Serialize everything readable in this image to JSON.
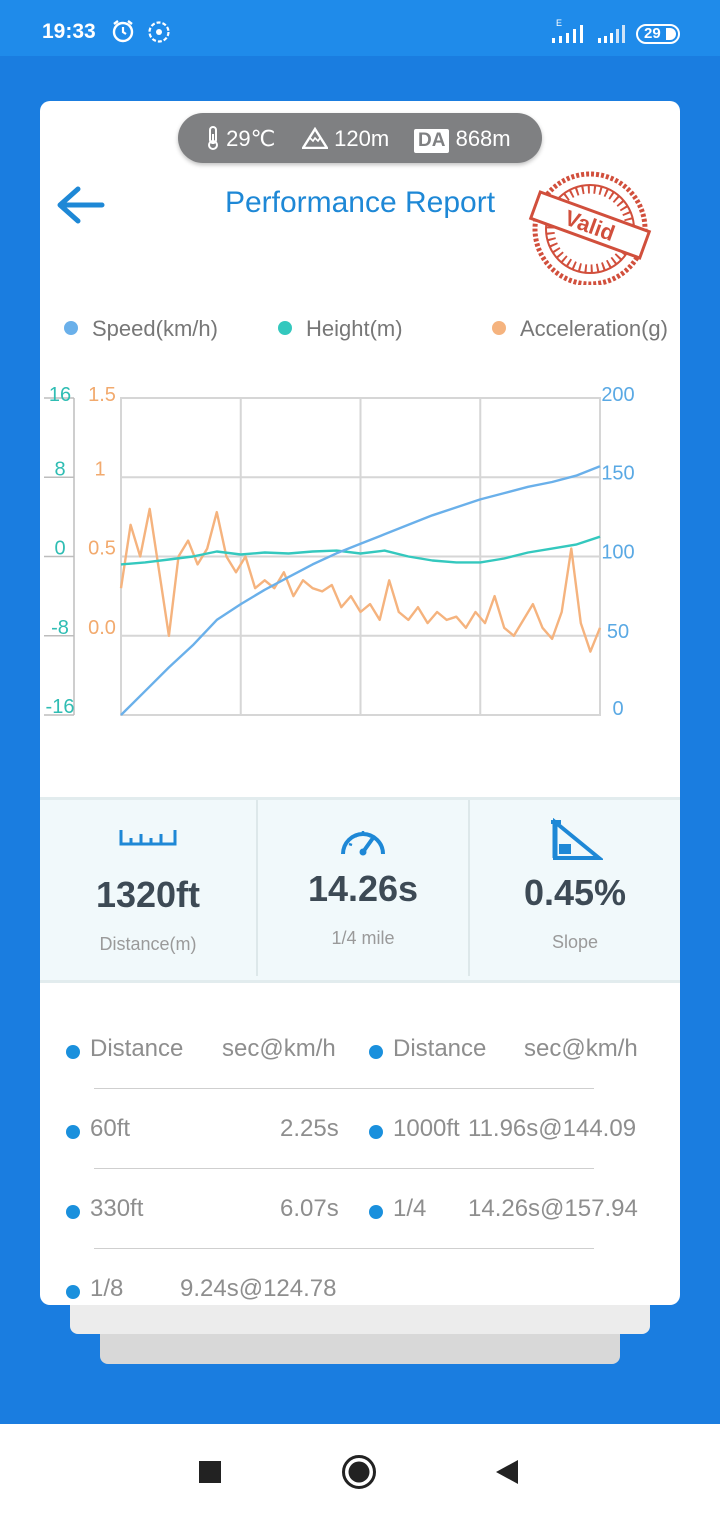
{
  "status_bar": {
    "time": "19:33",
    "battery": "29",
    "network_label": "E"
  },
  "env": {
    "temperature": "29℃",
    "altitude": "120m",
    "da_label": "DA",
    "density_altitude": "868m"
  },
  "header": {
    "title": "Performance Report",
    "badge": "Valid"
  },
  "chart_data": {
    "type": "line",
    "legend": [
      "Speed(km/h)",
      "Height(m)",
      "Acceleration(g)"
    ],
    "colors": {
      "speed": "#6ab0ea",
      "height": "#34c8be",
      "acceleration": "#f5b37e"
    },
    "axes": {
      "height_ticks": [
        "16",
        "8",
        "0",
        "-8",
        "-16"
      ],
      "accel_ticks": [
        "1.5",
        "1",
        "0.5",
        "0.0"
      ],
      "speed_ticks": [
        "200",
        "150",
        "100",
        "50",
        "0"
      ]
    },
    "ylim_speed": [
      0,
      200
    ],
    "ylim_height": [
      -16,
      16
    ],
    "ylim_acceleration": [
      -0.5,
      1.5
    ],
    "x_range": [
      0,
      1
    ],
    "grid": true,
    "series": [
      {
        "name": "Speed(km/h)",
        "axis": "speed",
        "x": [
          0,
          0.05,
          0.1,
          0.15,
          0.2,
          0.25,
          0.3,
          0.35,
          0.4,
          0.45,
          0.5,
          0.55,
          0.6,
          0.65,
          0.7,
          0.75,
          0.8,
          0.85,
          0.9,
          0.95,
          1.0
        ],
        "values": [
          0,
          15,
          30,
          44,
          60,
          70,
          79,
          87,
          95,
          102,
          108,
          114,
          120,
          126,
          131,
          136,
          140,
          144,
          147,
          151,
          157
        ]
      },
      {
        "name": "Height(m)",
        "axis": "height",
        "x": [
          0,
          0.05,
          0.1,
          0.15,
          0.2,
          0.25,
          0.3,
          0.35,
          0.4,
          0.45,
          0.5,
          0.55,
          0.6,
          0.65,
          0.7,
          0.75,
          0.8,
          0.85,
          0.9,
          0.95,
          1.0
        ],
        "values": [
          -0.8,
          -0.6,
          -0.3,
          0.0,
          0.5,
          0.2,
          0.4,
          0.3,
          0.5,
          0.6,
          0.3,
          0.6,
          0.0,
          -0.4,
          -0.6,
          -0.6,
          -0.2,
          0.4,
          0.8,
          1.2,
          2.0
        ]
      },
      {
        "name": "Acceleration(g)",
        "axis": "acceleration",
        "x": [
          0,
          0.02,
          0.04,
          0.06,
          0.08,
          0.1,
          0.12,
          0.14,
          0.16,
          0.18,
          0.2,
          0.22,
          0.24,
          0.26,
          0.28,
          0.3,
          0.32,
          0.34,
          0.36,
          0.38,
          0.4,
          0.42,
          0.44,
          0.46,
          0.48,
          0.5,
          0.52,
          0.54,
          0.56,
          0.58,
          0.6,
          0.62,
          0.64,
          0.66,
          0.68,
          0.7,
          0.72,
          0.74,
          0.76,
          0.78,
          0.8,
          0.82,
          0.84,
          0.86,
          0.88,
          0.9,
          0.92,
          0.94,
          0.96,
          0.98,
          1.0
        ],
        "values": [
          0.3,
          0.7,
          0.5,
          0.8,
          0.4,
          0.0,
          0.5,
          0.6,
          0.45,
          0.55,
          0.78,
          0.5,
          0.4,
          0.5,
          0.3,
          0.35,
          0.3,
          0.4,
          0.25,
          0.35,
          0.3,
          0.28,
          0.32,
          0.18,
          0.25,
          0.15,
          0.2,
          0.1,
          0.35,
          0.15,
          0.1,
          0.18,
          0.08,
          0.15,
          0.1,
          0.12,
          0.05,
          0.15,
          0.08,
          0.25,
          0.05,
          0.0,
          0.1,
          0.2,
          0.05,
          -0.02,
          0.15,
          0.55,
          0.08,
          -0.1,
          0.05
        ]
      }
    ]
  },
  "stats": [
    {
      "value": "1320ft",
      "label": "Distance(m)",
      "icon": "ruler-icon"
    },
    {
      "value": "14.26s",
      "label": "1/4 mile",
      "icon": "speedometer-icon"
    },
    {
      "value": "0.45%",
      "label": "Slope",
      "icon": "slope-icon"
    }
  ],
  "results": {
    "header": {
      "left_col1": "Distance",
      "left_col2": "sec@km/h",
      "right_col1": "Distance",
      "right_col2": "sec@km/h"
    },
    "rows": [
      {
        "left_dist": "60ft",
        "left_val": "2.25s",
        "right_dist": "1000ft",
        "right_val": "11.96s@144.09"
      },
      {
        "left_dist": "330ft",
        "left_val": "6.07s",
        "right_dist": "1/4",
        "right_val": "14.26s@157.94"
      },
      {
        "left_dist": "1/8",
        "left_val": "9.24s@124.78"
      }
    ]
  }
}
